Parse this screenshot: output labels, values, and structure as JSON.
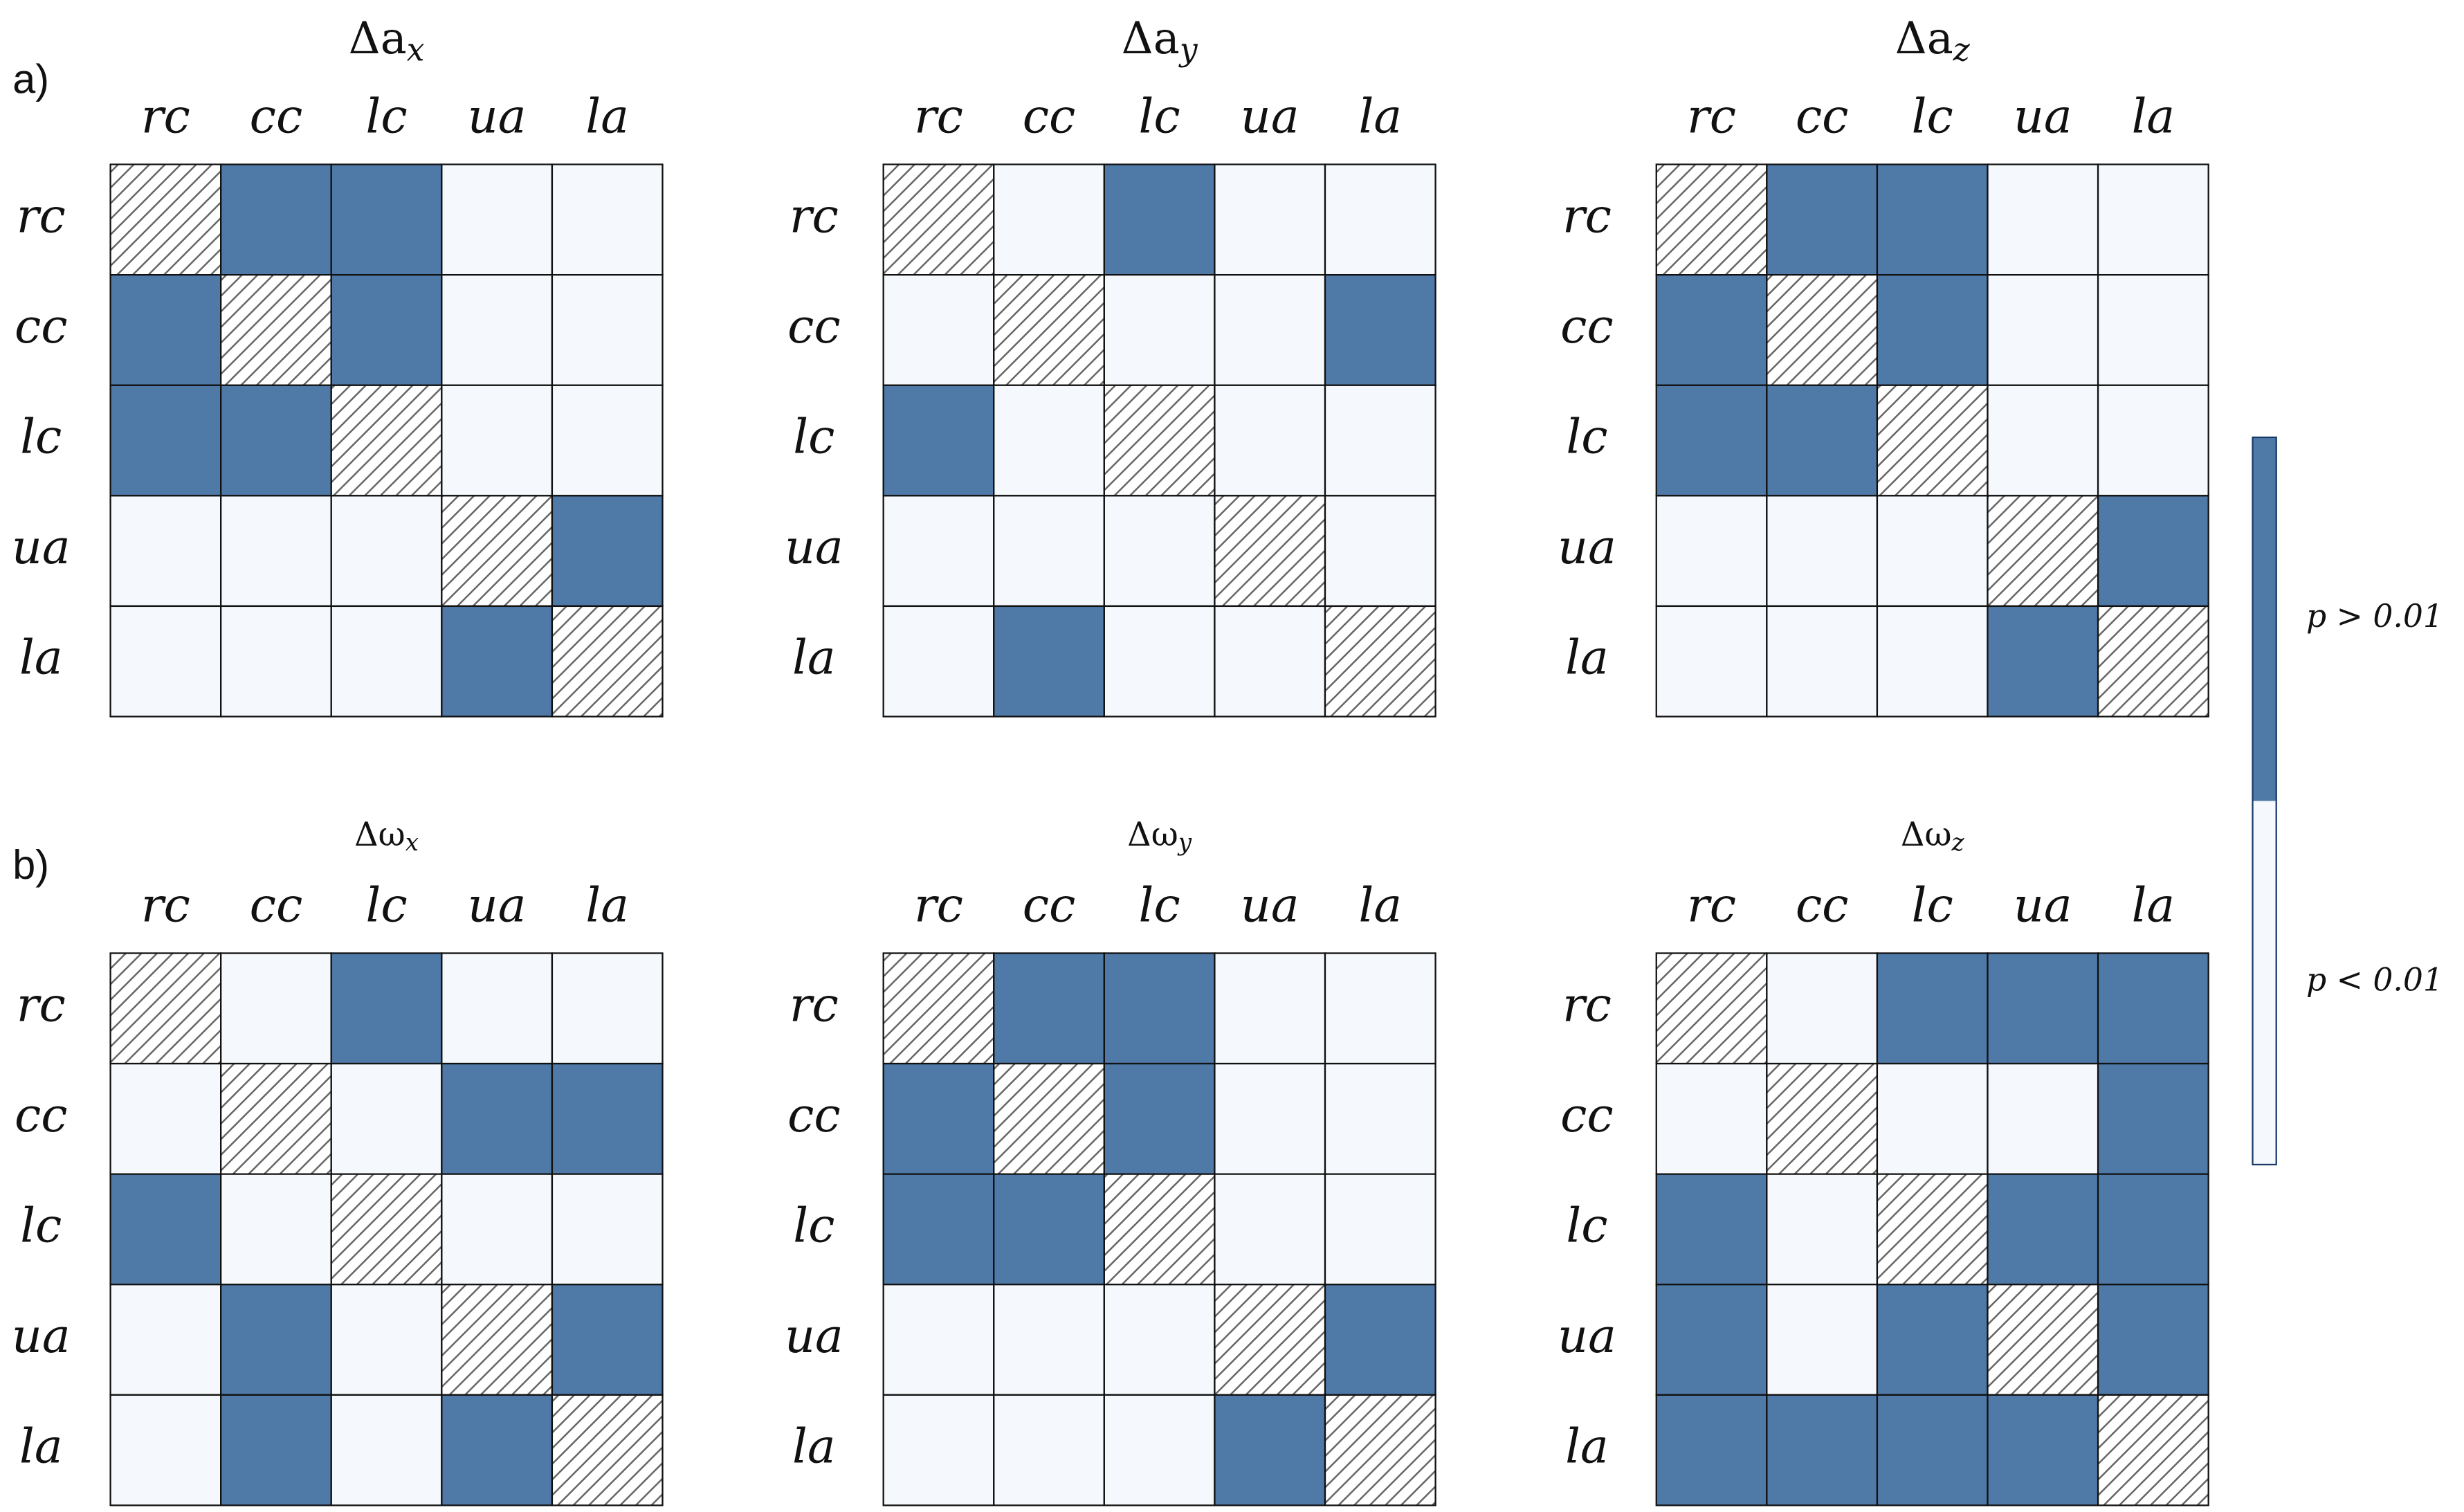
{
  "panel_labels": [
    "a)",
    "b)"
  ],
  "colorbar": {
    "colors": [
      "#f5f8fc",
      "#4f79a7"
    ],
    "lim": [
      0,
      1
    ],
    "ticks": [
      {
        "value": 0.75,
        "label": "p > 0.01"
      },
      {
        "value": 0.25,
        "label": "p < 0.01"
      }
    ]
  },
  "chart_data": [
    {
      "type": "heatmap",
      "title": {
        "base": "Δa",
        "sub": "x"
      },
      "x_categories": [
        "rc",
        "cc",
        "lc",
        "ua",
        "la"
      ],
      "y_categories": [
        "rc",
        "cc",
        "lc",
        "ua",
        "la"
      ],
      "values": [
        [
          null,
          1,
          1,
          0,
          0
        ],
        [
          1,
          null,
          1,
          0,
          0
        ],
        [
          1,
          1,
          null,
          0,
          0
        ],
        [
          0,
          0,
          0,
          null,
          1
        ],
        [
          0,
          0,
          0,
          1,
          null
        ]
      ]
    },
    {
      "type": "heatmap",
      "title": {
        "base": "Δa",
        "sub": "y"
      },
      "x_categories": [
        "rc",
        "cc",
        "lc",
        "ua",
        "la"
      ],
      "y_categories": [
        "rc",
        "cc",
        "lc",
        "ua",
        "la"
      ],
      "values": [
        [
          null,
          0,
          1,
          0,
          0
        ],
        [
          0,
          null,
          0,
          0,
          1
        ],
        [
          1,
          0,
          null,
          0,
          0
        ],
        [
          0,
          0,
          0,
          null,
          0
        ],
        [
          0,
          1,
          0,
          0,
          null
        ]
      ]
    },
    {
      "type": "heatmap",
      "title": {
        "base": "Δa",
        "sub": "z"
      },
      "x_categories": [
        "rc",
        "cc",
        "lc",
        "ua",
        "la"
      ],
      "y_categories": [
        "rc",
        "cc",
        "lc",
        "ua",
        "la"
      ],
      "values": [
        [
          null,
          1,
          1,
          0,
          0
        ],
        [
          1,
          null,
          1,
          0,
          0
        ],
        [
          1,
          1,
          null,
          0,
          0
        ],
        [
          0,
          0,
          0,
          null,
          1
        ],
        [
          0,
          0,
          0,
          1,
          null
        ]
      ]
    },
    {
      "type": "heatmap",
      "title": {
        "base": "Δω",
        "sub": "x"
      },
      "x_categories": [
        "rc",
        "cc",
        "lc",
        "ua",
        "la"
      ],
      "y_categories": [
        "rc",
        "cc",
        "lc",
        "ua",
        "la"
      ],
      "values": [
        [
          null,
          0,
          1,
          0,
          0
        ],
        [
          0,
          null,
          0,
          1,
          1
        ],
        [
          1,
          0,
          null,
          0,
          0
        ],
        [
          0,
          1,
          0,
          null,
          1
        ],
        [
          0,
          1,
          0,
          1,
          null
        ]
      ]
    },
    {
      "type": "heatmap",
      "title": {
        "base": "Δω",
        "sub": "y"
      },
      "x_categories": [
        "rc",
        "cc",
        "lc",
        "ua",
        "la"
      ],
      "y_categories": [
        "rc",
        "cc",
        "lc",
        "ua",
        "la"
      ],
      "values": [
        [
          null,
          1,
          1,
          0,
          0
        ],
        [
          1,
          null,
          1,
          0,
          0
        ],
        [
          1,
          1,
          null,
          0,
          0
        ],
        [
          0,
          0,
          0,
          null,
          1
        ],
        [
          0,
          0,
          0,
          1,
          null
        ]
      ]
    },
    {
      "type": "heatmap",
      "title": {
        "base": "Δω",
        "sub": "z"
      },
      "x_categories": [
        "rc",
        "cc",
        "lc",
        "ua",
        "la"
      ],
      "y_categories": [
        "rc",
        "cc",
        "lc",
        "ua",
        "la"
      ],
      "values": [
        [
          null,
          0,
          1,
          1,
          1
        ],
        [
          0,
          null,
          0,
          0,
          1
        ],
        [
          1,
          0,
          null,
          1,
          1
        ],
        [
          1,
          0,
          1,
          null,
          1
        ],
        [
          1,
          1,
          1,
          1,
          null
        ]
      ]
    }
  ]
}
